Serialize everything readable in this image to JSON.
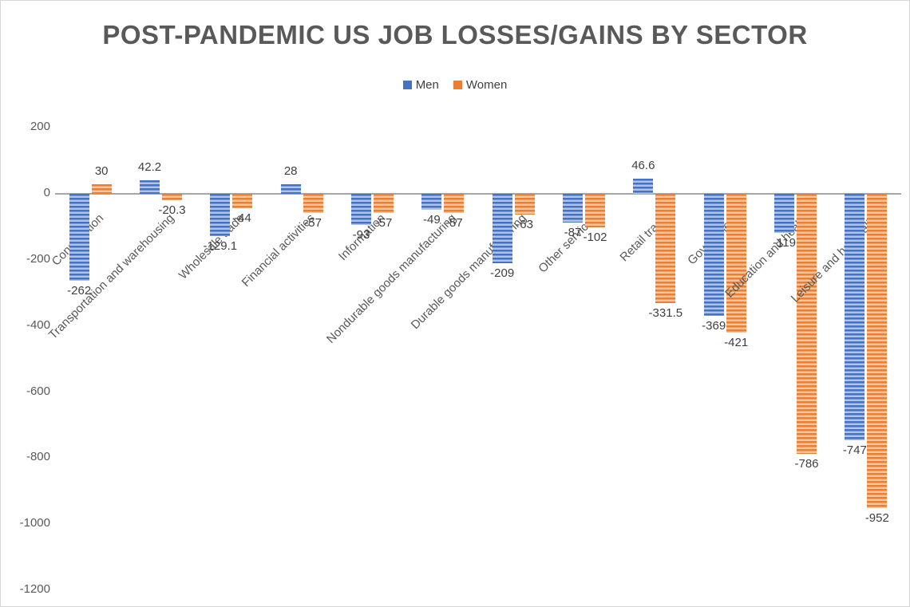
{
  "chart_data": {
    "type": "bar",
    "title": "POST-PANDEMIC US JOB LOSSES/GAINS BY SECTOR",
    "legend_position": "top",
    "gridlines": false,
    "categories": [
      "Construction",
      "Transportation and warehousing",
      "Wholesale trade",
      "Financial activities",
      "Information",
      "Nondurable goods manufacturing",
      "Durable goods manufacturing",
      "Other services",
      "Retail trade",
      "Government",
      "Education and health",
      "Leisure and hospitality"
    ],
    "series": [
      {
        "name": "Men",
        "color": "#4472C4",
        "color_light": "#AFC3E8",
        "values": [
          -262,
          42.2,
          -129.1,
          28,
          -93,
          -49,
          -209,
          -87,
          46.6,
          -369,
          -119,
          -747
        ],
        "labels": [
          "-262",
          "42.2",
          "-129.1",
          "28",
          "-93",
          "-49",
          "-209",
          "-87",
          "46.6",
          "-369",
          "-119",
          "-747"
        ]
      },
      {
        "name": "Women",
        "color": "#ED7D31",
        "color_light": "#F7C59B",
        "values": [
          30,
          -20.3,
          -44,
          -57,
          -57,
          -57,
          -63,
          -102,
          -331.5,
          -421,
          -786,
          -952
        ],
        "labels": [
          "30",
          "-20.3",
          "-44",
          "-57",
          "-57",
          "-57",
          "-63",
          "-102",
          "-331.5",
          "-421",
          "-786",
          "-952"
        ]
      }
    ],
    "y_axis": {
      "min": -1200,
      "max": 200,
      "tick_step": 200,
      "ticks": [
        200,
        0,
        -200,
        -400,
        -600,
        -800,
        -1000,
        -1200
      ]
    },
    "colors": {
      "title_text": "#595959",
      "axis_text": "#595959",
      "value_text": "#3F3F3F",
      "axis_line": "#A6A6A6"
    }
  }
}
